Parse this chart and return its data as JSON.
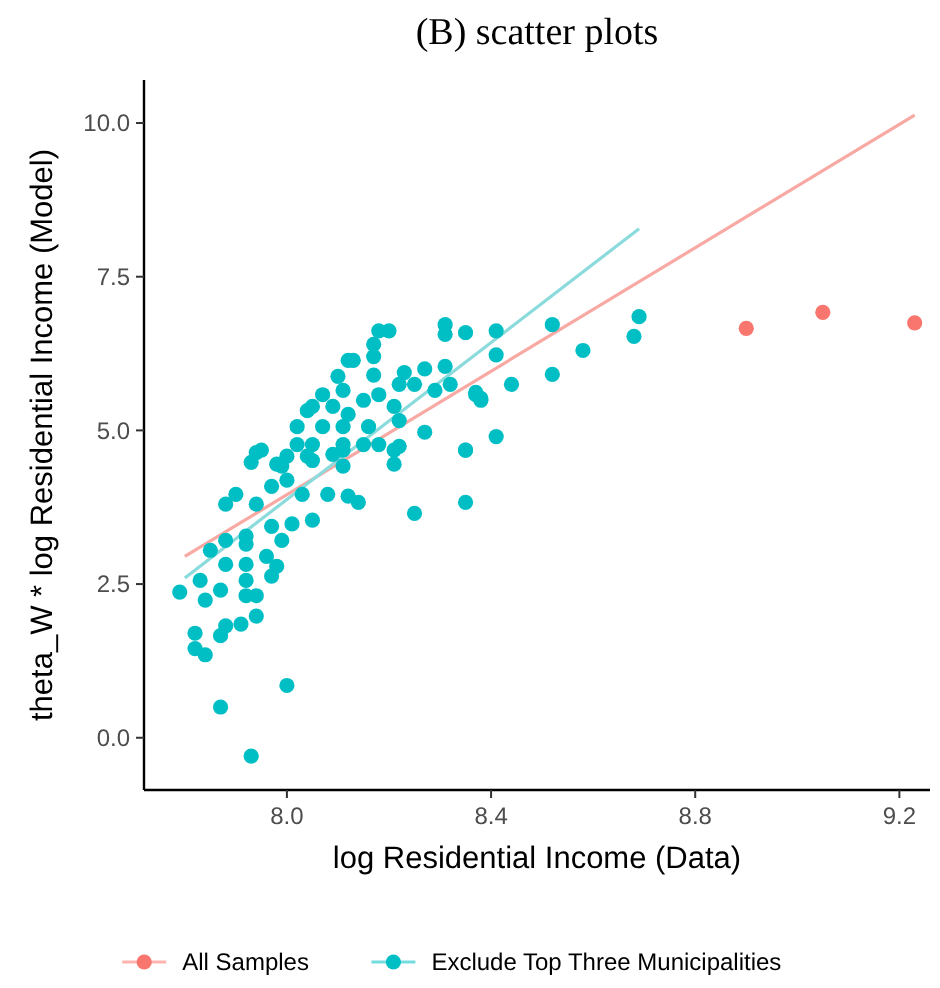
{
  "chart_data": {
    "type": "scatter",
    "title": "(B) scatter plots",
    "xlabel": "log Residential Income (Data)",
    "ylabel": "theta_W * log Residential Income (Model)",
    "xlim": [
      7.72,
      9.26
    ],
    "ylim": [
      -0.85,
      10.7
    ],
    "xticks": [
      {
        "value": 8,
        "label": "8.0"
      },
      {
        "value": 8.4,
        "label": "8.4"
      },
      {
        "value": 8.8,
        "label": "8.8"
      },
      {
        "value": 9.2,
        "label": "9.2"
      }
    ],
    "yticks": [
      {
        "value": 0,
        "label": "0.0"
      },
      {
        "value": 2.5,
        "label": "2.5"
      },
      {
        "value": 5,
        "label": "5.0"
      },
      {
        "value": 7.5,
        "label": "7.5"
      },
      {
        "value": 10,
        "label": "10.0"
      }
    ],
    "grid": false,
    "legend": "bottom",
    "marker": "circle",
    "series": [
      {
        "name": "All Samples",
        "color": "#f8766d",
        "x": [
          8.9,
          9.05,
          9.23
        ],
        "values": [
          6.66,
          6.92,
          6.75
        ]
      },
      {
        "name": "Exclude Top Three Municipalities",
        "color": "#00bfc4",
        "x": [
          7.93,
          7.87,
          8.0,
          7.79,
          7.82,
          7.82,
          7.84,
          8.25,
          8.35,
          8.18,
          8.2,
          8.31,
          8.31,
          8.35,
          8.41,
          8.41,
          8.44,
          8.37,
          8.41,
          8.35,
          8.27,
          8.17,
          8.17,
          8.12,
          8.13,
          8.1,
          8.23,
          8.27,
          8.31,
          8.32,
          8.29,
          8.25,
          8.22,
          8.17,
          8.18,
          8.15,
          8.11,
          8.07,
          8.05,
          8.04,
          8.09,
          8.12,
          8.21,
          8.22,
          8.16,
          8.11,
          8.07,
          8.02,
          8.02,
          8.05,
          8.11,
          8.15,
          8.22,
          7.93,
          7.95,
          7.98,
          8.0,
          8.05,
          8.09,
          8.21,
          8.11,
          7.94,
          7.99,
          8.04,
          8.11,
          8.18,
          8.21,
          8.38,
          7.9,
          7.88,
          7.94,
          7.97,
          8.0,
          8.03,
          8.08,
          8.12,
          8.14,
          8.05,
          8.01,
          7.97,
          7.92,
          7.88,
          7.85,
          7.92,
          7.99,
          7.96,
          7.88,
          7.92,
          7.98,
          7.83,
          7.92,
          7.97,
          7.87,
          7.84,
          7.92,
          7.94,
          7.88,
          7.91,
          7.94,
          7.87,
          8.52,
          8.69,
          8.68,
          8.58,
          8.52,
          8.37,
          8.38,
          8.35
        ],
        "values": [
          -0.3,
          0.5,
          0.85,
          2.37,
          1.7,
          1.45,
          1.35,
          3.65,
          3.83,
          6.62,
          6.62,
          6.72,
          6.56,
          6.59,
          6.62,
          6.23,
          5.75,
          5.58,
          4.9,
          4.68,
          4.97,
          6.4,
          6.2,
          6.14,
          6.14,
          5.88,
          5.94,
          6.0,
          6.04,
          5.75,
          5.65,
          5.75,
          5.75,
          5.9,
          5.58,
          5.49,
          5.65,
          5.58,
          5.39,
          5.32,
          5.39,
          5.26,
          5.39,
          5.16,
          5.06,
          5.06,
          5.06,
          5.06,
          4.77,
          4.77,
          4.77,
          4.77,
          4.74,
          4.48,
          4.68,
          4.45,
          4.58,
          4.51,
          4.61,
          4.45,
          4.42,
          4.64,
          4.42,
          4.58,
          4.68,
          4.77,
          4.68,
          5.49,
          3.96,
          3.8,
          3.8,
          4.09,
          4.19,
          3.96,
          3.96,
          3.93,
          3.83,
          3.54,
          3.48,
          3.44,
          3.28,
          3.21,
          3.05,
          3.15,
          3.21,
          2.95,
          2.82,
          2.82,
          2.79,
          2.56,
          2.56,
          2.63,
          2.4,
          2.24,
          2.31,
          2.31,
          1.82,
          1.85,
          1.98,
          1.66,
          6.72,
          6.85,
          6.53,
          6.3,
          5.91,
          5.62,
          5.52,
          4.68
        ]
      },
      {
        "type": "line",
        "marker": "none",
        "color": "#f8a9a3",
        "x": [
          7.8,
          9.23
        ],
        "values": [
          2.95,
          10.13
        ]
      },
      {
        "type": "line",
        "marker": "none",
        "color": "#8bdbdc",
        "x": [
          7.8,
          8.69
        ],
        "values": [
          2.6,
          8.28
        ]
      }
    ]
  }
}
